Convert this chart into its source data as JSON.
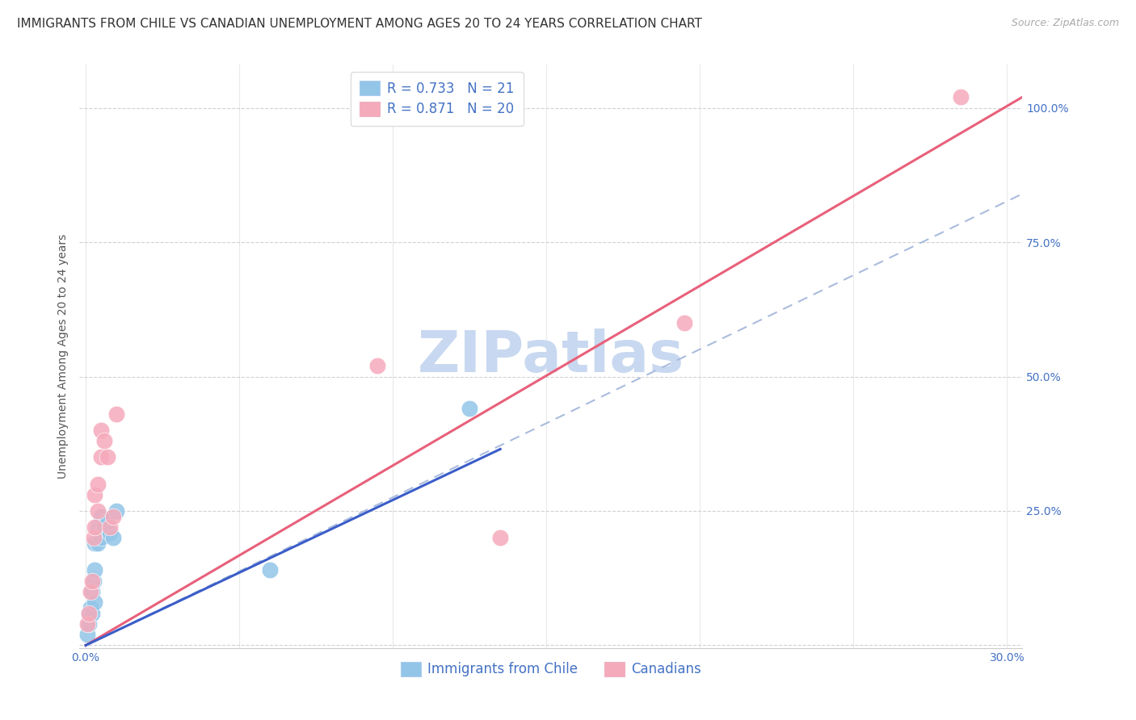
{
  "title": "IMMIGRANTS FROM CHILE VS CANADIAN UNEMPLOYMENT AMONG AGES 20 TO 24 YEARS CORRELATION CHART",
  "source": "Source: ZipAtlas.com",
  "ylabel": "Unemployment Among Ages 20 to 24 years",
  "y_ticks": [
    0.0,
    0.25,
    0.5,
    0.75,
    1.0
  ],
  "y_tick_labels": [
    "",
    "25.0%",
    "50.0%",
    "75.0%",
    "100.0%"
  ],
  "x_ticks": [
    0.0,
    0.05,
    0.1,
    0.15,
    0.2,
    0.25,
    0.3
  ],
  "xlim": [
    -0.002,
    0.305
  ],
  "ylim": [
    -0.005,
    1.08
  ],
  "r_chile": 0.733,
  "n_chile": 21,
  "r_canada": 0.871,
  "n_canada": 20,
  "legend_label_chile": "Immigrants from Chile",
  "legend_label_canada": "Canadians",
  "chile_color": "#92C5E8",
  "canada_color": "#F5AABB",
  "chile_line_color": "#3B5DC9",
  "canada_line_color": "#E8607A",
  "dashed_line_color": "#AABCDD",
  "watermark": "ZIPatlas",
  "watermark_color": "#C8D8F0",
  "title_fontsize": 11,
  "source_fontsize": 9,
  "axis_label_fontsize": 10,
  "tick_fontsize": 10,
  "legend_fontsize": 12,
  "chile_scatter_x": [
    0.0005,
    0.001,
    0.001,
    0.0015,
    0.002,
    0.002,
    0.0025,
    0.003,
    0.003,
    0.003,
    0.004,
    0.004,
    0.005,
    0.005,
    0.006,
    0.007,
    0.008,
    0.009,
    0.01,
    0.06,
    0.125
  ],
  "chile_scatter_y": [
    0.02,
    0.04,
    0.06,
    0.07,
    0.06,
    0.1,
    0.12,
    0.08,
    0.14,
    0.19,
    0.19,
    0.22,
    0.2,
    0.24,
    0.22,
    0.23,
    0.21,
    0.2,
    0.25,
    0.14,
    0.44
  ],
  "canada_scatter_x": [
    0.0005,
    0.001,
    0.0015,
    0.002,
    0.0025,
    0.003,
    0.003,
    0.004,
    0.004,
    0.005,
    0.005,
    0.006,
    0.007,
    0.008,
    0.009,
    0.01,
    0.095,
    0.135,
    0.195,
    0.285
  ],
  "canada_scatter_y": [
    0.04,
    0.06,
    0.1,
    0.12,
    0.2,
    0.22,
    0.28,
    0.25,
    0.3,
    0.35,
    0.4,
    0.38,
    0.35,
    0.22,
    0.24,
    0.43,
    0.52,
    0.2,
    0.6,
    1.02
  ],
  "canada_line_x0": 0.0,
  "canada_line_y0": 0.0,
  "canada_line_x1": 0.305,
  "canada_line_y1": 1.02,
  "chile_line_x0": 0.0,
  "chile_line_y0": 0.0,
  "chile_line_x1": 0.135,
  "chile_line_y1": 0.365,
  "dash_line_x0": 0.0,
  "dash_line_y0": 0.0,
  "dash_line_x1": 0.305,
  "dash_line_y1": 0.84
}
